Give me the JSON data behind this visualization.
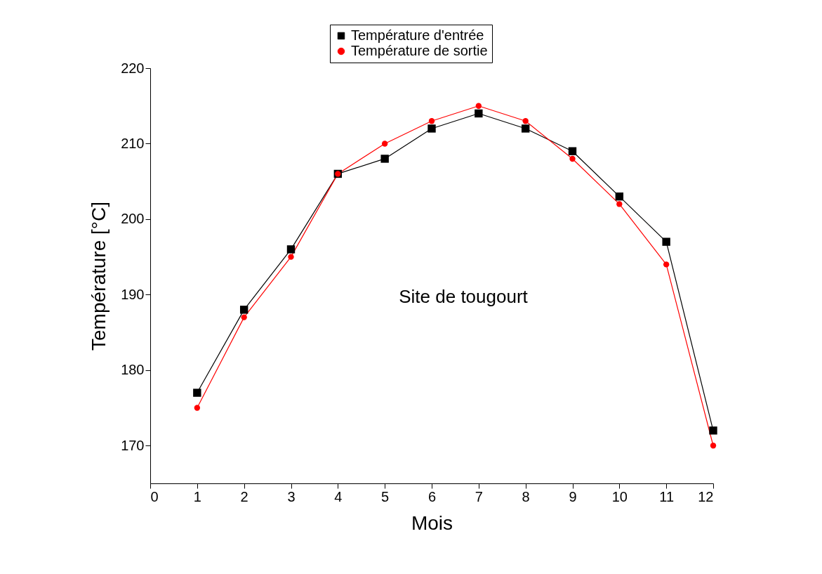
{
  "chart_data": {
    "type": "line",
    "xlabel": "Mois",
    "ylabel": "Température [°C]",
    "x": [
      1,
      2,
      3,
      4,
      5,
      6,
      7,
      8,
      9,
      10,
      11,
      12
    ],
    "series": [
      {
        "name": "Température d'entrée",
        "color": "#000000",
        "marker": "square",
        "values": [
          177,
          188,
          196,
          206,
          208,
          212,
          214,
          212,
          209,
          203,
          197,
          172
        ]
      },
      {
        "name": "Température de sortie",
        "color": "#ff0000",
        "marker": "circle",
        "values": [
          175,
          187,
          195,
          206,
          210,
          213,
          215,
          213,
          208,
          202,
          194,
          170
        ]
      }
    ],
    "xlim": [
      0,
      12
    ],
    "xticks": [
      0,
      1,
      2,
      3,
      4,
      5,
      6,
      7,
      8,
      9,
      10,
      11,
      12
    ],
    "ylim": [
      165,
      220
    ],
    "yticks": [
      170,
      180,
      190,
      200,
      210,
      220
    ],
    "annotations": [
      "Site de tougourt"
    ],
    "grid": false,
    "legend": "top"
  }
}
